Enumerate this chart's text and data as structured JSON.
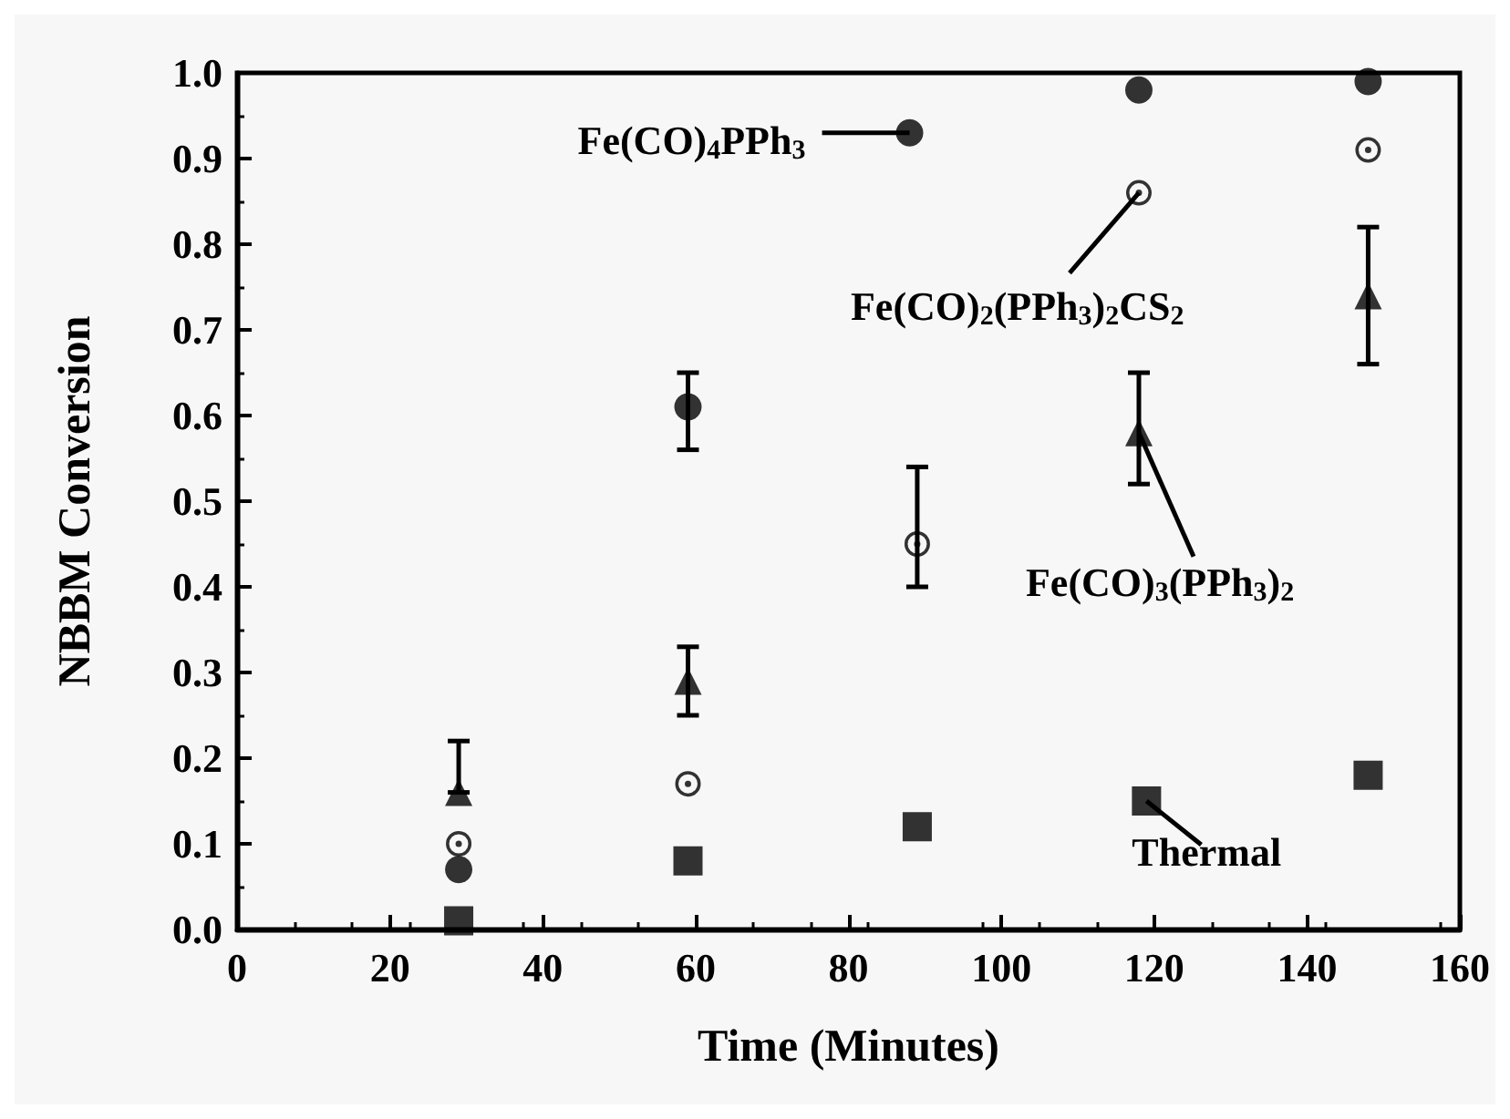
{
  "chart_data": {
    "type": "scatter",
    "xlabel": "Time (Minutes)",
    "ylabel": "NBBM Conversion",
    "xlim": [
      0,
      160
    ],
    "xticks": [
      0,
      20,
      40,
      60,
      80,
      100,
      120,
      140,
      160
    ],
    "ylim": [
      0,
      1
    ],
    "yticks": [
      {
        "value": 0,
        "label": "0.0"
      },
      {
        "value": 0.1,
        "label": "0.1"
      },
      {
        "value": 0.2,
        "label": "0.2"
      },
      {
        "value": 0.3,
        "label": "0.3"
      },
      {
        "value": 0.4,
        "label": "0.4"
      },
      {
        "value": 0.5,
        "label": "0.5"
      },
      {
        "value": 0.6,
        "label": "0.6"
      },
      {
        "value": 0.7,
        "label": "0.7"
      },
      {
        "value": 0.8,
        "label": "0.8"
      },
      {
        "value": 0.9,
        "label": "0.9"
      },
      {
        "value": 1,
        "label": "1.0"
      }
    ],
    "grid": false,
    "series": [
      {
        "color": "#000000",
        "marker": "circle",
        "x": [
          29,
          59,
          88,
          118,
          148
        ],
        "values": [
          0.07,
          0.61,
          0.93,
          0.98,
          0.99
        ],
        "errors": [
          null,
          [
            0.56,
            0.65
          ],
          null,
          null,
          null
        ]
      },
      {
        "color": "#000000",
        "marker": "open-circle",
        "x": [
          29,
          59,
          89,
          118,
          148
        ],
        "values": [
          0.1,
          0.17,
          0.45,
          0.86,
          0.91
        ],
        "errors": [
          null,
          null,
          [
            0.4,
            0.54
          ],
          null,
          null
        ]
      },
      {
        "color": "#000000",
        "marker": "triangle",
        "x": [
          29,
          59,
          89,
          118,
          148
        ],
        "values": [
          0.16,
          0.29,
          null,
          0.58,
          0.74
        ],
        "errors": [
          [
            0.16,
            0.22
          ],
          [
            0.25,
            0.33
          ],
          null,
          [
            0.52,
            0.65
          ],
          [
            0.66,
            0.82
          ]
        ]
      },
      {
        "color": "#000000",
        "marker": "square",
        "x": [
          29,
          59,
          89,
          119,
          148
        ],
        "values": [
          0.01,
          0.08,
          0.12,
          0.15,
          0.18
        ]
      }
    ],
    "annotations": [
      {
        "text": "Fe(CO)$_{4}$PPh$_{3}$",
        "x": 88,
        "y": 0.93
      },
      {
        "text": "Fe(CO)$_{2}$(PPh$_{3}$)$_{2}$CS$_{2}$",
        "x": 118,
        "y": 0.86
      },
      {
        "text": "Fe(CO)$_{3}$(PPh$_{3}$)$_{2}$",
        "x": 118,
        "y": 0.58
      },
      {
        "text": "Thermal",
        "x": 119,
        "y": 0.15
      }
    ]
  }
}
